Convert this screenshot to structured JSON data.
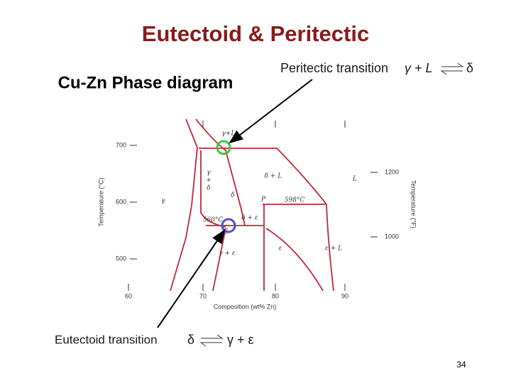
{
  "title": "Eutectoid & Peritectic",
  "subtitle": "Cu-Zn Phase diagram",
  "peritectic": {
    "label": "Peritectic transition",
    "left": "γ + L",
    "right": "δ"
  },
  "eutectoid": {
    "label": "Eutectoid transition",
    "left": "δ",
    "right": "γ + ε"
  },
  "diagram": {
    "y_axis_label": "Temperature (°C)",
    "y2_axis_label": "Temperature (°F)",
    "x_axis_label": "Composition (wt% Zn)",
    "x_ticks": [
      "60",
      "70",
      "80",
      "90"
    ],
    "y_ticks": [
      "700",
      "600",
      "500"
    ],
    "y2_ticks": [
      "1200",
      "1000"
    ],
    "phases": [
      "γ+L",
      "γ",
      "+",
      "δ",
      "γ",
      "δ",
      "δ + L",
      "L",
      "P",
      "598°C",
      "560°C",
      "E",
      "δ + ε",
      "γ + ε",
      "ε",
      "ε + L"
    ]
  },
  "page_number": "34"
}
